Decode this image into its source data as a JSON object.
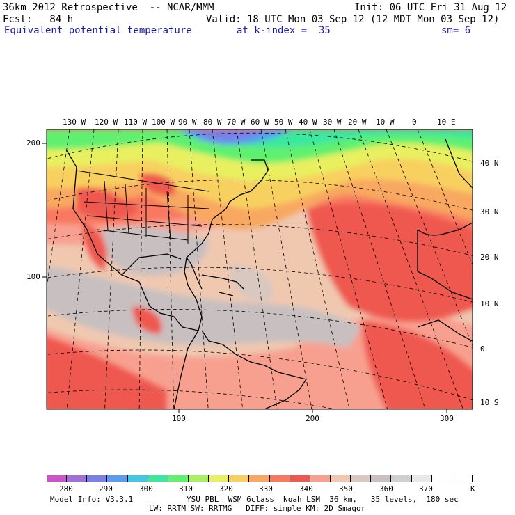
{
  "header": {
    "line1_left": "36km 2012 Retrospective  -- NCAR/MMM",
    "line1_right": "Init: 06 UTC Fri 31 Aug 12",
    "line2_left": "Fcst:   84 h",
    "line2_right": "Valid: 18 UTC Mon 03 Sep 12 (12 MDT Mon 03 Sep 12)",
    "line3_field": "Equivalent potential temperature",
    "line3_level": "at k-index =  35",
    "line3_smooth": "sm= 6"
  },
  "map": {
    "top_lon_labels": [
      "130 W",
      "120 W",
      "110 W",
      "100 W",
      "90 W",
      "80 W",
      "70 W",
      "60 W",
      "50 W",
      "40 W",
      "30 W",
      "20 W",
      "10 W",
      "0",
      "10 E"
    ],
    "right_lat_labels": [
      "40 N",
      "30 N",
      "20 N",
      "10 N",
      "0",
      "10 S"
    ],
    "left_grid_labels": [
      "200",
      "100"
    ],
    "bottom_grid_labels": [
      "100",
      "200",
      "300"
    ]
  },
  "colorbar": {
    "colors": [
      "#d050c8",
      "#a070d8",
      "#7a80e8",
      "#5a9cf0",
      "#40c8e0",
      "#3ae8a0",
      "#60f070",
      "#a8f060",
      "#e8f060",
      "#f8d060",
      "#f8a860",
      "#f87860",
      "#ef5850",
      "#f8a090",
      "#f0c8b0",
      "#d8c8c0",
      "#c8c0c0",
      "#d0d0d0",
      "#e8e8e8",
      "#ffffff",
      "#ffffff"
    ],
    "labels": [
      "280",
      "290",
      "300",
      "310",
      "320",
      "330",
      "340",
      "350",
      "360",
      "370"
    ],
    "unit": "K"
  },
  "footer": {
    "line1_left": "Model Info: V3.3.1",
    "line1_right": "YSU PBL  WSM 6class  Noah LSM  36 km,   35 levels,  180 sec",
    "line2": "LW: RRTM SW: RRTMG   DIFF: simple KM: 2D Smagor"
  }
}
